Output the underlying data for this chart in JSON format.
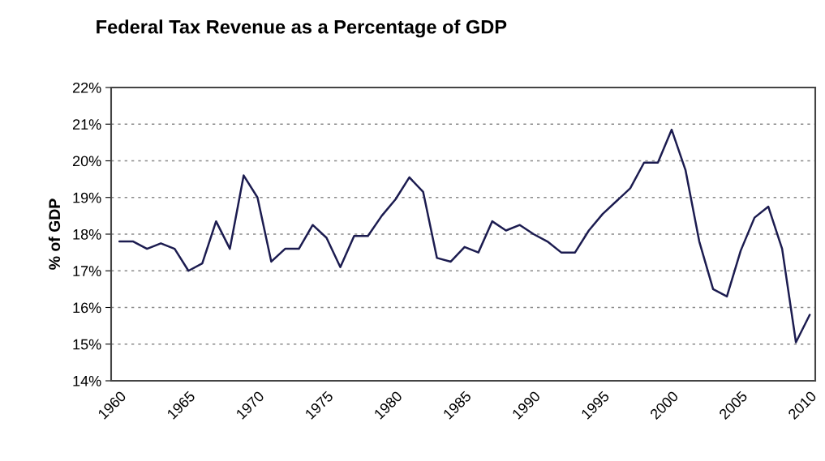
{
  "chart_data": {
    "type": "line",
    "title": "Federal Tax Revenue as a Percentage of GDP",
    "ylabel": "% of GDP",
    "x": [
      1960,
      1961,
      1962,
      1963,
      1964,
      1965,
      1966,
      1967,
      1968,
      1969,
      1970,
      1971,
      1972,
      1973,
      1974,
      1975,
      1976,
      1977,
      1978,
      1979,
      1980,
      1981,
      1982,
      1983,
      1984,
      1985,
      1986,
      1987,
      1988,
      1989,
      1990,
      1991,
      1992,
      1993,
      1994,
      1995,
      1996,
      1997,
      1998,
      1999,
      2000,
      2001,
      2002,
      2003,
      2004,
      2005,
      2006,
      2007,
      2008,
      2009,
      2010
    ],
    "series": [
      {
        "color": "#1c1c50",
        "values": [
          17.8,
          17.8,
          17.6,
          17.75,
          17.6,
          17.0,
          17.2,
          18.35,
          17.6,
          19.6,
          19.0,
          17.25,
          17.6,
          17.6,
          18.25,
          17.9,
          17.1,
          17.95,
          17.95,
          18.5,
          18.95,
          19.55,
          19.15,
          17.35,
          17.25,
          17.65,
          17.5,
          18.35,
          18.1,
          18.25,
          18.0,
          17.8,
          17.5,
          17.5,
          18.1,
          18.55,
          18.9,
          19.25,
          19.95,
          19.95,
          20.85,
          19.75,
          17.8,
          16.5,
          16.3,
          17.55,
          18.45,
          18.75,
          17.6,
          15.05,
          15.8
        ]
      }
    ],
    "xlim": [
      1959.4,
      2010.4
    ],
    "xticks": [
      1960,
      1965,
      1970,
      1975,
      1980,
      1985,
      1990,
      1995,
      2000,
      2005,
      2010
    ],
    "ylim": [
      14,
      22
    ],
    "yticks": [
      {
        "value": 14,
        "label": "14%"
      },
      {
        "value": 15,
        "label": "15%"
      },
      {
        "value": 16,
        "label": "16%"
      },
      {
        "value": 17,
        "label": "17%"
      },
      {
        "value": 18,
        "label": "18%"
      },
      {
        "value": 19,
        "label": "19%"
      },
      {
        "value": 20,
        "label": "20%"
      },
      {
        "value": 21,
        "label": "21%"
      },
      {
        "value": 22,
        "label": "22%"
      }
    ],
    "grid": "y",
    "marker": "none",
    "line_style": "solid"
  }
}
